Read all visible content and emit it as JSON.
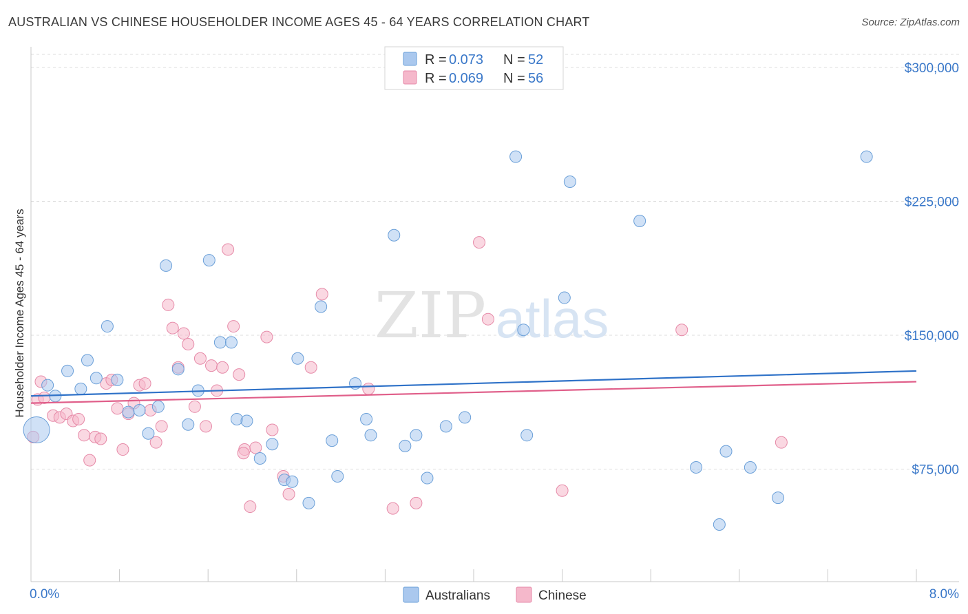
{
  "title": "AUSTRALIAN VS CHINESE HOUSEHOLDER INCOME AGES 45 - 64 YEARS CORRELATION CHART",
  "source": "Source: ZipAtlas.com",
  "watermark": {
    "zip": "ZIP",
    "atlas": "atlas"
  },
  "colors": {
    "australians_fill": "#aac8ee",
    "australians_stroke": "#6a9fd8",
    "australians_line": "#2f72c8",
    "chinese_fill": "#f5b8cb",
    "chinese_stroke": "#e68aa8",
    "chinese_line": "#e05f8a",
    "value_text": "#3a78c9",
    "grid": "#dddddd"
  },
  "legend": {
    "rows": [
      {
        "r_label": "R =",
        "r_value": "0.073",
        "n_label": "N =",
        "n_value": "52"
      },
      {
        "r_label": "R =",
        "r_value": "0.069",
        "n_label": "N =",
        "n_value": "56"
      }
    ]
  },
  "chart_data": {
    "type": "scatter",
    "xlabel": "",
    "ylabel": "Householder Income Ages 45 - 64 years",
    "xlim": [
      0,
      8
    ],
    "ylim": [
      12000,
      310000
    ],
    "x_tick_labels": [
      {
        "x": 0,
        "label": "0.0%"
      },
      {
        "x": 8,
        "label": "8.0%"
      }
    ],
    "y_ticks": [
      {
        "y": 75000,
        "label": "$75,000"
      },
      {
        "y": 150000,
        "label": "$150,000"
      },
      {
        "y": 225000,
        "label": "$225,000"
      },
      {
        "y": 300000,
        "label": "$300,000"
      }
    ],
    "grid": true,
    "legend_position": "bottom",
    "series": [
      {
        "name": "Australians",
        "trend": [
          [
            0,
            116000
          ],
          [
            8,
            130000
          ]
        ],
        "points": [
          [
            0.05,
            97000,
            "large"
          ],
          [
            0.15,
            122000
          ],
          [
            0.22,
            116000
          ],
          [
            0.33,
            130000
          ],
          [
            0.45,
            120000
          ],
          [
            0.51,
            136000
          ],
          [
            0.59,
            126000
          ],
          [
            0.69,
            155000
          ],
          [
            0.78,
            125000
          ],
          [
            0.88,
            107000
          ],
          [
            0.98,
            108000
          ],
          [
            1.06,
            95000
          ],
          [
            1.15,
            110000
          ],
          [
            1.22,
            189000
          ],
          [
            1.33,
            131000
          ],
          [
            1.42,
            100000
          ],
          [
            1.51,
            119000
          ],
          [
            1.61,
            192000
          ],
          [
            1.71,
            146000
          ],
          [
            1.81,
            146000
          ],
          [
            1.86,
            103000
          ],
          [
            1.95,
            102000
          ],
          [
            2.07,
            81000
          ],
          [
            2.18,
            89000
          ],
          [
            2.29,
            69000
          ],
          [
            2.36,
            68000
          ],
          [
            2.41,
            137000
          ],
          [
            2.51,
            56000
          ],
          [
            2.62,
            166000
          ],
          [
            2.72,
            91000
          ],
          [
            2.77,
            71000
          ],
          [
            2.93,
            123000
          ],
          [
            3.03,
            103000
          ],
          [
            3.07,
            94000
          ],
          [
            3.28,
            206000
          ],
          [
            3.38,
            88000
          ],
          [
            3.48,
            94000
          ],
          [
            3.58,
            70000
          ],
          [
            3.75,
            99000
          ],
          [
            3.92,
            104000
          ],
          [
            4.45,
            153000
          ],
          [
            4.38,
            250000
          ],
          [
            4.48,
            94000
          ],
          [
            4.82,
            171000
          ],
          [
            4.87,
            236000
          ],
          [
            5.5,
            214000
          ],
          [
            6.01,
            76000
          ],
          [
            6.22,
            44000
          ],
          [
            6.28,
            85000
          ],
          [
            6.5,
            76000
          ],
          [
            6.75,
            59000
          ],
          [
            7.55,
            250000
          ]
        ]
      },
      {
        "name": "Chinese",
        "trend": [
          [
            0,
            112000
          ],
          [
            8,
            124000
          ]
        ],
        "points": [
          [
            0.02,
            93000
          ],
          [
            0.06,
            114000
          ],
          [
            0.09,
            124000
          ],
          [
            0.12,
            115000
          ],
          [
            0.2,
            105000
          ],
          [
            0.26,
            104000
          ],
          [
            0.32,
            106000
          ],
          [
            0.38,
            102000
          ],
          [
            0.43,
            103000
          ],
          [
            0.48,
            94000
          ],
          [
            0.53,
            80000
          ],
          [
            0.58,
            93000
          ],
          [
            0.63,
            92000
          ],
          [
            0.68,
            123000
          ],
          [
            0.73,
            125000
          ],
          [
            0.78,
            109000
          ],
          [
            0.83,
            86000
          ],
          [
            0.88,
            106000
          ],
          [
            0.93,
            112000
          ],
          [
            0.98,
            122000
          ],
          [
            1.03,
            123000
          ],
          [
            1.08,
            108000
          ],
          [
            1.13,
            90000
          ],
          [
            1.18,
            99000
          ],
          [
            1.24,
            167000
          ],
          [
            1.28,
            154000
          ],
          [
            1.33,
            132000
          ],
          [
            1.38,
            151000
          ],
          [
            1.42,
            145000
          ],
          [
            1.48,
            110000
          ],
          [
            1.53,
            137000
          ],
          [
            1.58,
            99000
          ],
          [
            1.63,
            133000
          ],
          [
            1.68,
            119000
          ],
          [
            1.73,
            132000
          ],
          [
            1.78,
            198000
          ],
          [
            1.83,
            155000
          ],
          [
            1.88,
            128000
          ],
          [
            1.93,
            86000
          ],
          [
            1.98,
            54000
          ],
          [
            2.03,
            87000
          ],
          [
            2.13,
            149000
          ],
          [
            2.18,
            97000
          ],
          [
            2.28,
            71000
          ],
          [
            2.33,
            61000
          ],
          [
            2.53,
            132000
          ],
          [
            2.63,
            173000
          ],
          [
            3.05,
            120000
          ],
          [
            3.27,
            53000
          ],
          [
            3.48,
            56000
          ],
          [
            4.05,
            202000
          ],
          [
            4.13,
            159000
          ],
          [
            4.8,
            63000
          ],
          [
            5.88,
            153000
          ],
          [
            6.78,
            90000
          ],
          [
            1.92,
            84000
          ]
        ]
      }
    ]
  }
}
